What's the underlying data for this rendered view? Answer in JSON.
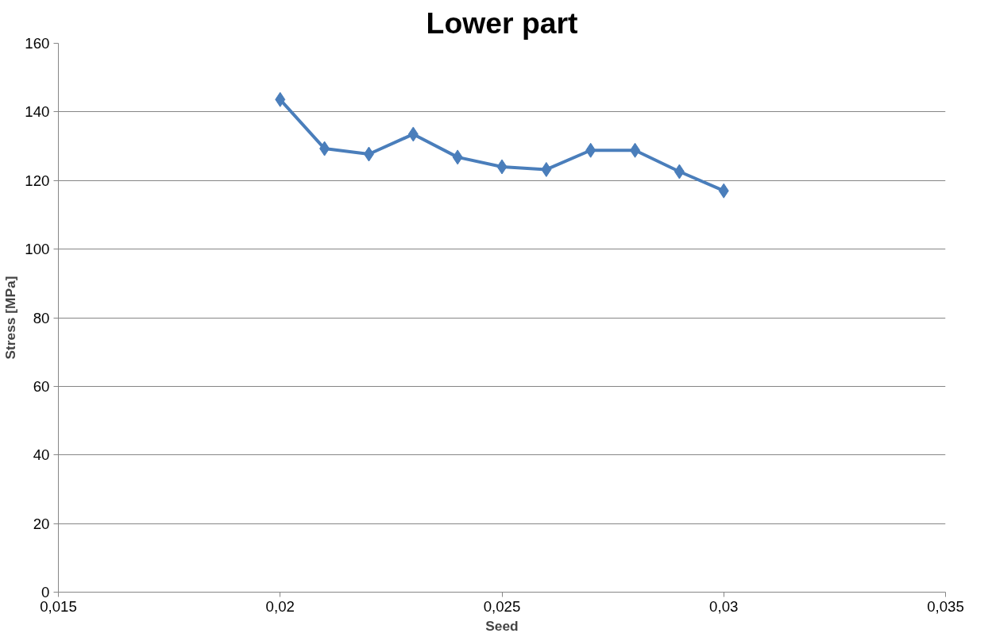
{
  "chart_data": {
    "type": "line",
    "title": "Lower part",
    "xlabel": "Seed",
    "ylabel": "Stress [MPa]",
    "x": [
      0.02,
      0.021,
      0.022,
      0.023,
      0.024,
      0.025,
      0.026,
      0.027,
      0.028,
      0.029,
      0.03
    ],
    "series": [
      {
        "color": "#4a7ebb",
        "values": [
          143.6,
          129.3,
          127.7,
          133.5,
          126.8,
          124.0,
          123.2,
          128.8,
          128.8,
          122.6,
          117.0
        ]
      }
    ],
    "xlim": [
      0.015,
      0.035
    ],
    "xticks": [
      {
        "value": 0.015,
        "label": "0,015"
      },
      {
        "value": 0.02,
        "label": "0,02"
      },
      {
        "value": 0.025,
        "label": "0,025"
      },
      {
        "value": 0.03,
        "label": "0,03"
      },
      {
        "value": 0.035,
        "label": "0,035"
      }
    ],
    "ylim": [
      0,
      160
    ],
    "yticks": [
      0,
      20,
      40,
      60,
      80,
      100,
      120,
      140,
      160
    ],
    "grid": "y",
    "marker": "diamond",
    "line_style": "solid"
  }
}
